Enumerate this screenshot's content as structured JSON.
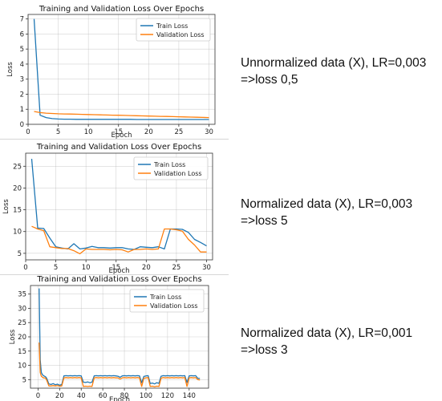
{
  "colors": {
    "train": "#1f77b4",
    "validation": "#ff7f0e",
    "grid": "#b0b0b0"
  },
  "chart_data": [
    {
      "type": "line",
      "title": "Training and Validation Loss Over Epochs",
      "xlabel": "Epoch",
      "ylabel": "Loss",
      "xlim": [
        0,
        31
      ],
      "ylim": [
        0,
        7.3
      ],
      "xticks": [
        0,
        5,
        10,
        15,
        20,
        25,
        30
      ],
      "yticks": [
        0,
        1,
        2,
        3,
        4,
        5,
        6,
        7
      ],
      "grid": true,
      "legend_position": "upper-right",
      "series": [
        {
          "name": "Train Loss",
          "x": [
            1,
            2,
            3,
            4,
            5,
            6,
            7,
            8,
            9,
            10,
            11,
            12,
            13,
            14,
            15,
            16,
            17,
            18,
            19,
            20,
            21,
            22,
            23,
            24,
            25,
            26,
            27,
            28,
            29,
            30
          ],
          "y": [
            7.0,
            0.6,
            0.45,
            0.38,
            0.35,
            0.34,
            0.34,
            0.33,
            0.33,
            0.33,
            0.33,
            0.33,
            0.33,
            0.33,
            0.33,
            0.33,
            0.33,
            0.32,
            0.32,
            0.32,
            0.32,
            0.32,
            0.32,
            0.32,
            0.32,
            0.32,
            0.32,
            0.32,
            0.32,
            0.32
          ]
        },
        {
          "name": "Validation Loss",
          "x": [
            1,
            2,
            3,
            4,
            5,
            6,
            7,
            8,
            9,
            10,
            11,
            12,
            13,
            14,
            15,
            16,
            17,
            18,
            19,
            20,
            21,
            22,
            23,
            24,
            25,
            26,
            27,
            28,
            29,
            30
          ],
          "y": [
            0.85,
            0.78,
            0.74,
            0.72,
            0.7,
            0.69,
            0.68,
            0.67,
            0.66,
            0.65,
            0.64,
            0.63,
            0.62,
            0.61,
            0.6,
            0.59,
            0.58,
            0.57,
            0.56,
            0.55,
            0.54,
            0.53,
            0.52,
            0.51,
            0.5,
            0.49,
            0.48,
            0.47,
            0.46,
            0.45
          ]
        }
      ]
    },
    {
      "type": "line",
      "title": "Training and Validation Loss Over Epochs",
      "xlabel": "Epoch",
      "ylabel": "Loss",
      "xlim": [
        0,
        31
      ],
      "ylim": [
        3.5,
        28
      ],
      "xticks": [
        0,
        5,
        10,
        15,
        20,
        25,
        30
      ],
      "yticks": [
        5,
        10,
        15,
        20,
        25
      ],
      "grid": true,
      "legend_position": "upper-right",
      "series": [
        {
          "name": "Train Loss",
          "x": [
            1,
            2,
            3,
            4,
            5,
            6,
            7,
            8,
            9,
            10,
            11,
            12,
            13,
            14,
            15,
            16,
            17,
            18,
            19,
            20,
            21,
            22,
            23,
            24,
            25,
            26,
            27,
            28,
            29,
            30
          ],
          "y": [
            26.7,
            10.8,
            10.7,
            8.5,
            6.5,
            6.2,
            6.0,
            7.2,
            6.0,
            6.2,
            6.6,
            6.3,
            6.3,
            6.2,
            6.3,
            6.3,
            6.0,
            5.9,
            6.5,
            6.4,
            6.3,
            6.5,
            6.0,
            10.6,
            10.6,
            10.5,
            9.8,
            8.2,
            7.5,
            6.7
          ]
        },
        {
          "name": "Validation Loss",
          "x": [
            1,
            2,
            3,
            4,
            5,
            6,
            7,
            8,
            9,
            10,
            11,
            12,
            13,
            14,
            15,
            16,
            17,
            18,
            19,
            20,
            21,
            22,
            23,
            24,
            25,
            26,
            27,
            28,
            29,
            30
          ],
          "y": [
            11.2,
            10.6,
            10.2,
            6.5,
            6.3,
            6.1,
            6.1,
            5.6,
            4.9,
            6.0,
            5.9,
            5.9,
            5.9,
            5.8,
            5.9,
            5.8,
            5.3,
            5.9,
            5.9,
            6.0,
            5.9,
            6.0,
            10.6,
            10.6,
            10.4,
            10.1,
            8.2,
            6.9,
            5.3,
            5.3
          ]
        }
      ]
    },
    {
      "type": "line",
      "title": "Training and Validation Loss Over Epochs",
      "xlabel": "Epoch",
      "ylabel": "Loss",
      "xlim": [
        -7,
        158
      ],
      "ylim": [
        2,
        38
      ],
      "xticks": [
        0,
        20,
        40,
        60,
        80,
        100,
        120,
        140
      ],
      "yticks": [
        5,
        10,
        15,
        20,
        25,
        30,
        35
      ],
      "grid": true,
      "legend_position": "upper-right",
      "series": [
        {
          "name": "Train Loss",
          "x": [
            1,
            2,
            3,
            4,
            5,
            6,
            7,
            8,
            10,
            12,
            14,
            16,
            18,
            20,
            22,
            24,
            26,
            28,
            30,
            32,
            34,
            36,
            38,
            40,
            42,
            44,
            46,
            48,
            50,
            52,
            54,
            56,
            58,
            60,
            62,
            64,
            66,
            68,
            70,
            72,
            74,
            76,
            78,
            80,
            82,
            84,
            86,
            88,
            90,
            92,
            94,
            96,
            98,
            100,
            102,
            104,
            106,
            108,
            110,
            112,
            114,
            116,
            118,
            120,
            122,
            124,
            126,
            128,
            130,
            132,
            134,
            136,
            138,
            140,
            142,
            144,
            146,
            148,
            150
          ],
          "y": [
            37,
            12,
            7.5,
            6.8,
            6.4,
            6.2,
            6.0,
            5.5,
            3.5,
            3.3,
            3.6,
            3.2,
            3.4,
            3.0,
            3.3,
            6.3,
            6.4,
            6.3,
            6.4,
            6.3,
            6.4,
            6.3,
            6.4,
            6.3,
            4.1,
            4.0,
            4.2,
            3.9,
            4.1,
            6.3,
            6.4,
            6.3,
            6.4,
            6.3,
            6.4,
            6.3,
            6.4,
            6.3,
            6.4,
            6.3,
            6.2,
            5.8,
            6.3,
            6.4,
            6.3,
            6.4,
            6.3,
            6.4,
            6.3,
            6.4,
            6.3,
            3.9,
            6.1,
            6.3,
            6.4,
            3.6,
            3.8,
            3.5,
            3.9,
            3.7,
            6.2,
            6.4,
            6.3,
            6.4,
            6.3,
            6.4,
            6.3,
            6.4,
            6.3,
            6.4,
            6.3,
            6.4,
            4.0,
            6.3,
            6.4,
            6.3,
            6.4,
            5.5,
            5.4
          ]
        },
        {
          "name": "Validation Loss",
          "x": [
            1,
            2,
            3,
            4,
            5,
            6,
            7,
            8,
            10,
            12,
            14,
            16,
            18,
            20,
            22,
            24,
            26,
            28,
            30,
            32,
            34,
            36,
            38,
            40,
            42,
            44,
            46,
            48,
            50,
            52,
            54,
            56,
            58,
            60,
            62,
            64,
            66,
            68,
            70,
            72,
            74,
            76,
            78,
            80,
            82,
            84,
            86,
            88,
            90,
            92,
            94,
            96,
            98,
            100,
            102,
            104,
            106,
            108,
            110,
            112,
            114,
            116,
            118,
            120,
            122,
            124,
            126,
            128,
            130,
            132,
            134,
            136,
            138,
            140,
            142,
            144,
            146,
            148,
            150
          ],
          "y": [
            18,
            7.5,
            6.2,
            5.9,
            5.6,
            5.6,
            5.5,
            4.8,
            2.8,
            2.8,
            2.9,
            2.8,
            2.9,
            2.7,
            2.8,
            5.6,
            5.7,
            5.6,
            5.7,
            5.6,
            5.7,
            5.6,
            5.7,
            5.6,
            2.6,
            2.7,
            2.6,
            2.7,
            2.6,
            5.6,
            5.7,
            5.6,
            5.7,
            5.6,
            5.7,
            5.6,
            5.7,
            5.6,
            5.7,
            5.6,
            5.6,
            5.2,
            5.6,
            5.7,
            5.6,
            5.7,
            5.6,
            5.7,
            5.6,
            5.7,
            5.6,
            2.6,
            5.5,
            5.6,
            5.7,
            2.6,
            2.7,
            2.5,
            2.7,
            2.6,
            5.5,
            5.7,
            5.6,
            5.7,
            5.6,
            5.7,
            5.6,
            5.7,
            5.6,
            5.7,
            5.6,
            5.7,
            2.6,
            5.6,
            5.7,
            5.6,
            5.7,
            5.0,
            4.9
          ]
        }
      ]
    }
  ],
  "notes": [
    {
      "line1": "Unnormalized data (X), LR=0,003",
      "line2": "=>loss 0,5"
    },
    {
      "line1": "Normalized data (X), LR=0,003",
      "line2": "=>loss 5"
    },
    {
      "line1": "Normalized data (X), LR=0,001",
      "line2": "=>loss 3"
    }
  ]
}
